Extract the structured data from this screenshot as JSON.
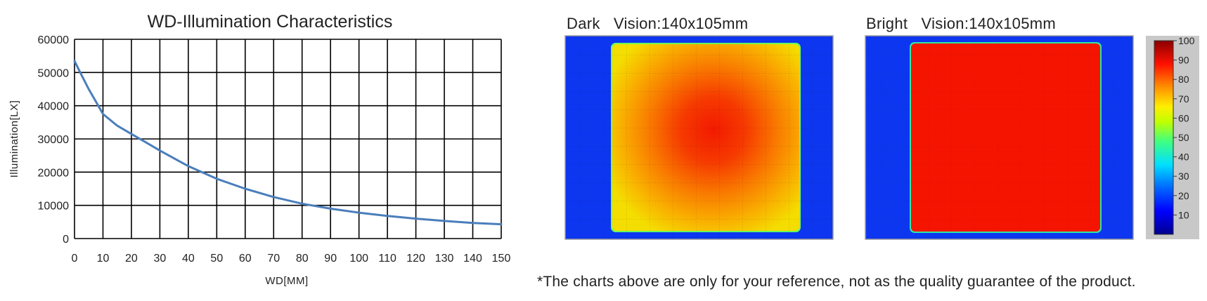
{
  "chart_data": [
    {
      "type": "line",
      "title": "WD-Illumination Characteristics",
      "xlabel": "WD[MM]",
      "ylabel": "Illumination[LX]",
      "xlim": [
        0,
        150
      ],
      "ylim": [
        0,
        60000
      ],
      "xticks": [
        "0",
        "10",
        "20",
        "30",
        "40",
        "50",
        "60",
        "70",
        "80",
        "90",
        "100",
        "110",
        "120",
        "130",
        "140",
        "150"
      ],
      "yticks": [
        "0",
        "10000",
        "20000",
        "30000",
        "40000",
        "50000",
        "60000"
      ],
      "grid": true,
      "color": "#4a7ebb",
      "x": [
        0,
        2,
        5,
        8,
        10,
        15,
        20,
        25,
        30,
        40,
        50,
        60,
        70,
        80,
        90,
        100,
        110,
        120,
        130,
        140,
        150
      ],
      "y": [
        53500,
        50000,
        45000,
        40500,
        37500,
        34000,
        31500,
        29000,
        26500,
        21800,
        18000,
        15000,
        12500,
        10500,
        9000,
        7800,
        6800,
        6000,
        5300,
        4700,
        4300
      ]
    },
    {
      "type": "heatmap",
      "title": "Dark   Vision:140x105mm",
      "background": "blue",
      "pattern": "orange-yellow field, hottest (red) near center, cooler (yellow) toward edges"
    },
    {
      "type": "heatmap",
      "title": "Bright   Vision:140x105mm",
      "background": "blue",
      "pattern": "uniform red field"
    },
    {
      "type": "colorbar",
      "ticks": [
        "100",
        "90",
        "80",
        "70",
        "60",
        "50",
        "40",
        "30",
        "20",
        "10"
      ],
      "range": [
        0,
        100
      ]
    }
  ],
  "footnote": "*The charts above are only for your reference, not as the quality guarantee of the product."
}
